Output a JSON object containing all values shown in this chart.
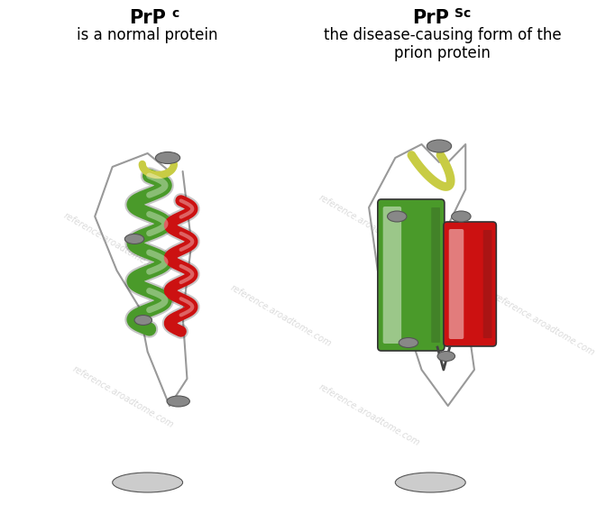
{
  "background_color": "#ffffff",
  "left_title": "PrP",
  "left_super": "c",
  "left_subtitle": "is a normal protein",
  "right_title": "PrP",
  "right_super": "Sc",
  "right_sub1": "the disease-causing form of the",
  "right_sub2": "prion protein",
  "title_fontsize": 15,
  "subtitle_fontsize": 12,
  "watermark_text": "reference.aroadtome.com",
  "watermark_color": "#b0b0b0",
  "watermark_alpha": 0.45,
  "green_helix": "#4a9a2a",
  "red_helix": "#cc1111",
  "yellow_loop": "#c8cc44",
  "cap_color": "#888888",
  "loop_color": "#999999",
  "loop_lw": 1.5
}
